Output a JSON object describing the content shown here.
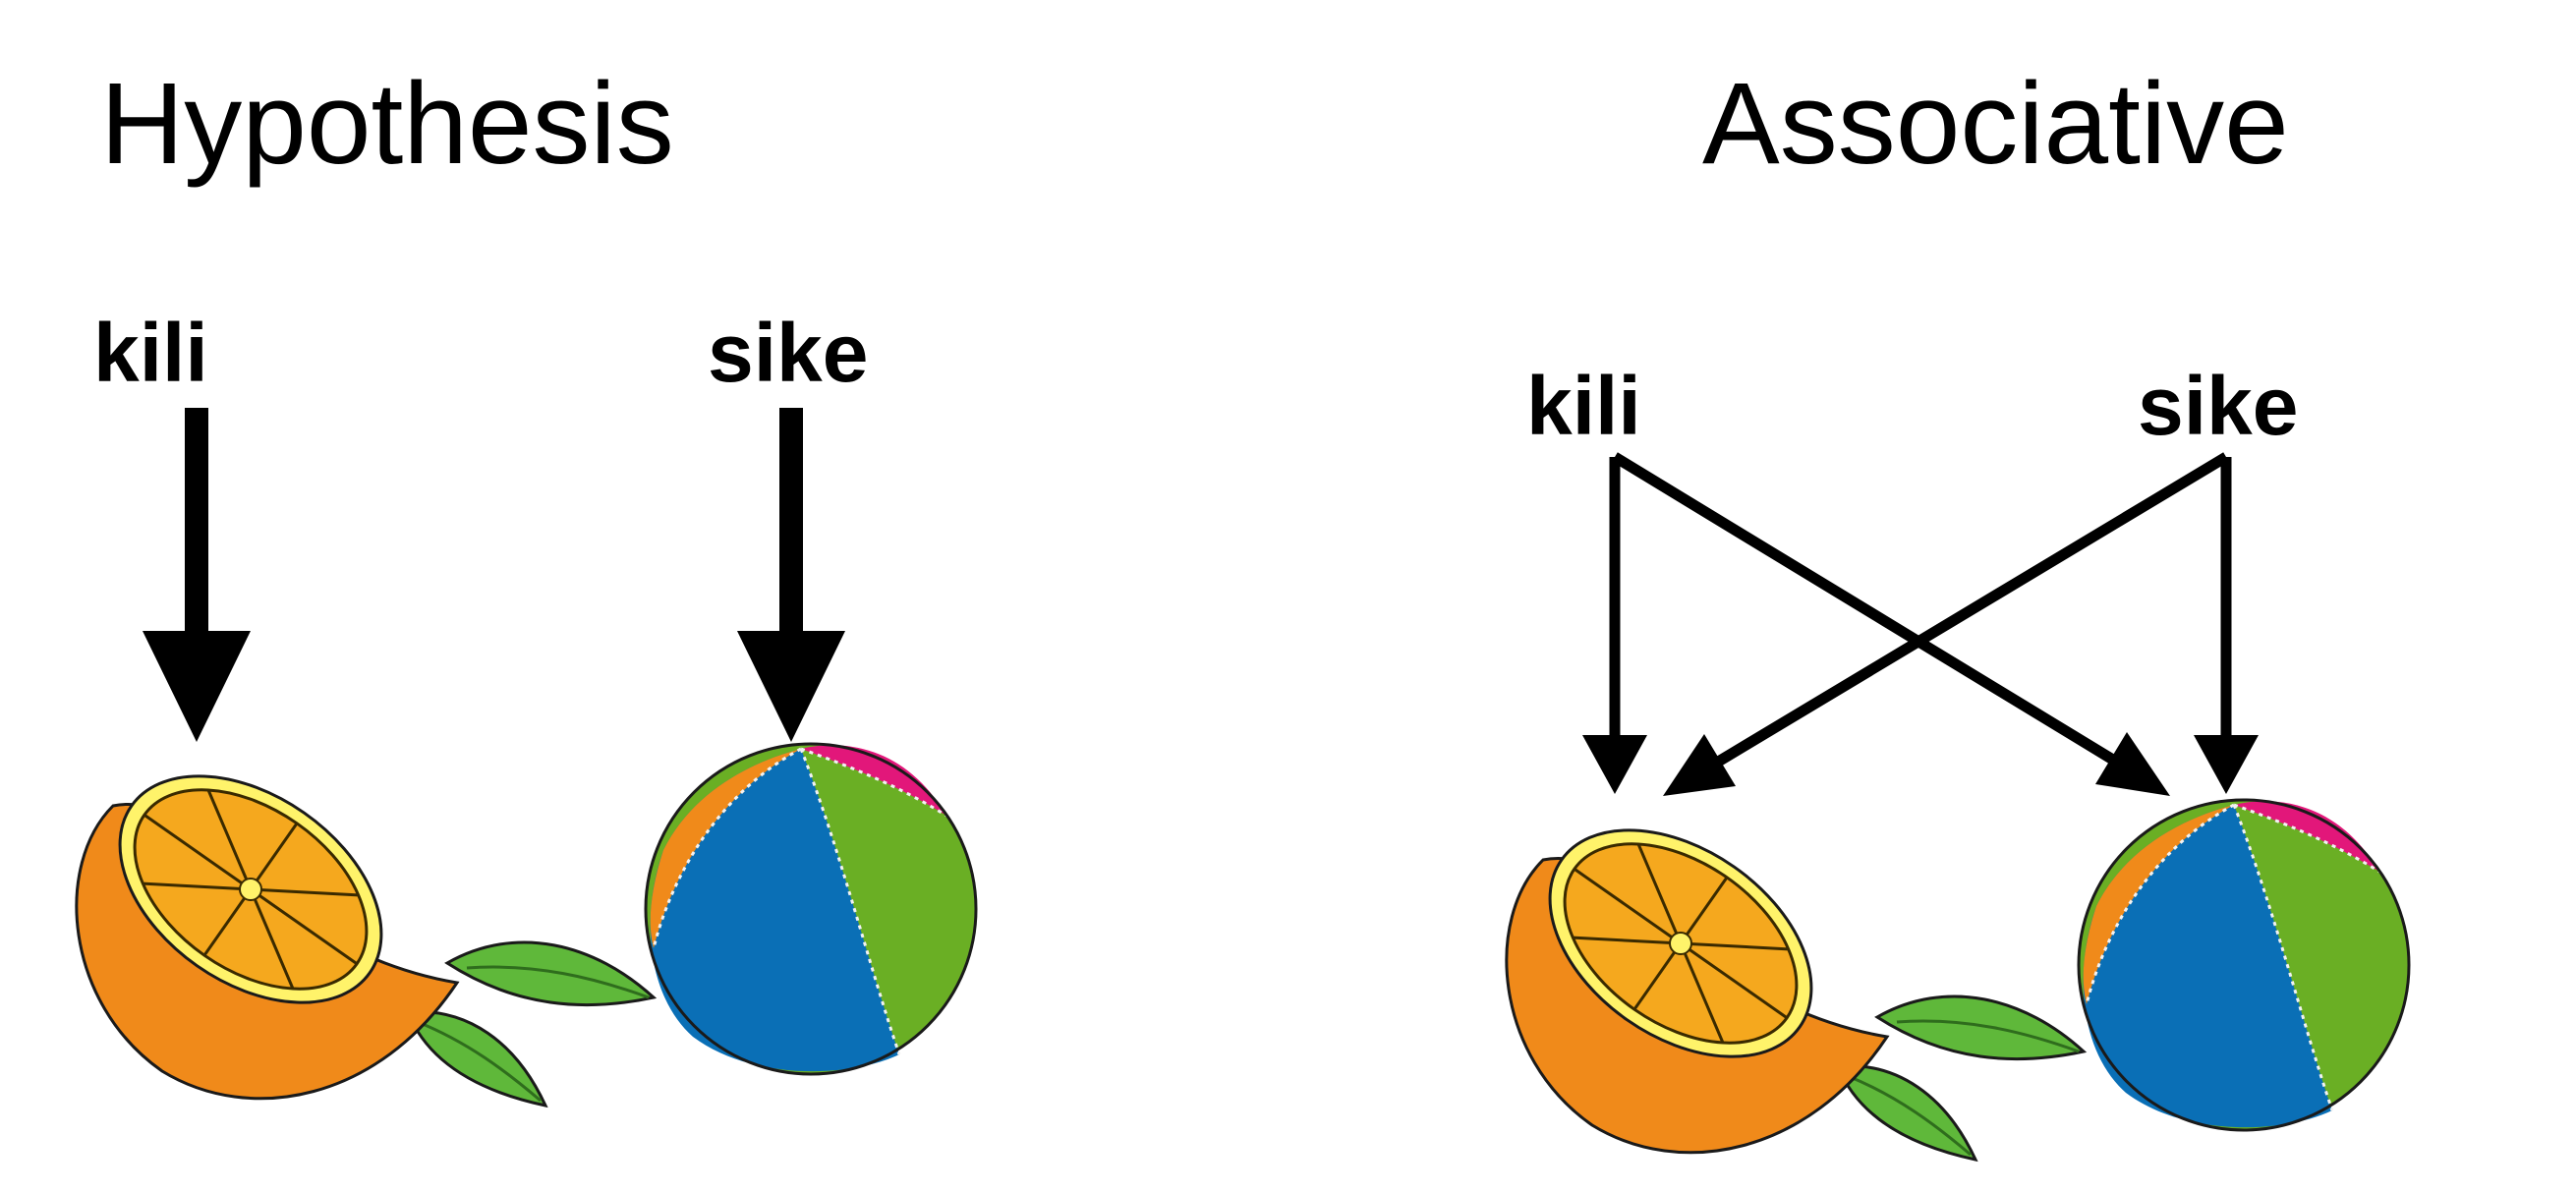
{
  "panels": {
    "hypothesis": {
      "title": "Hypothesis",
      "words": [
        "kili",
        "sike"
      ]
    },
    "associative": {
      "title": "Associative",
      "words": [
        "kili",
        "sike"
      ]
    }
  },
  "objects": [
    "orange",
    "ball"
  ],
  "colors": {
    "text": "#000000",
    "arrow": "#000000",
    "orange_peel": "#f08a1a",
    "orange_pulp": "#f5a81e",
    "orange_rind": "#fff36a",
    "leaf": "#5fb83a",
    "ball_blue": "#0a6fb6",
    "ball_green": "#6aaf24",
    "ball_orange": "#f08a1a",
    "ball_magenta": "#e2177a"
  }
}
